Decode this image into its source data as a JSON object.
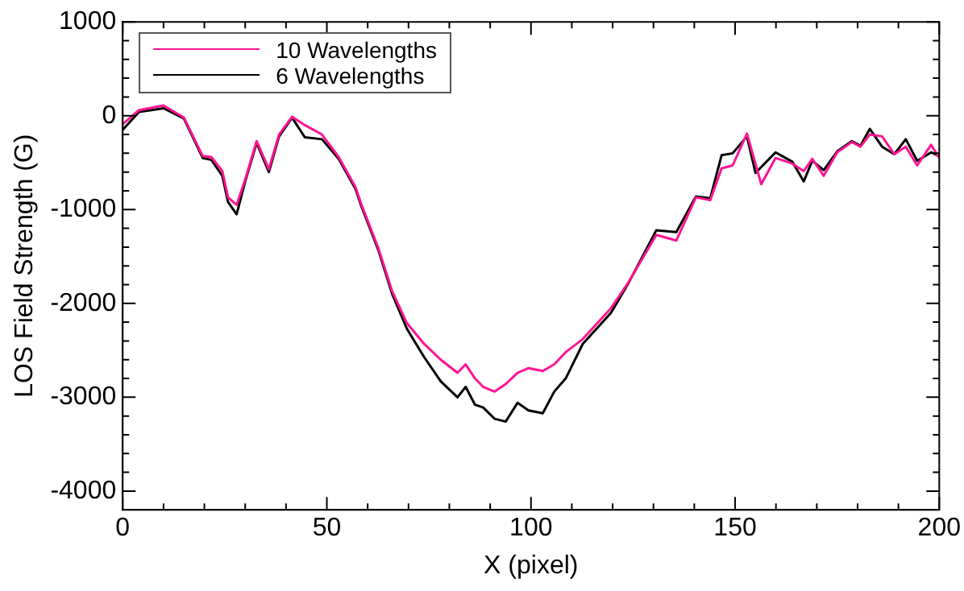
{
  "chart_data": {
    "type": "line",
    "xlabel": "X (pixel)",
    "ylabel": "LOS Field Strength (G)",
    "xlim": [
      0,
      200
    ],
    "xticks": [
      0,
      {
        "value": 10,
        "label": null
      },
      {
        "value": 20,
        "label": null
      },
      {
        "value": 30,
        "label": null
      },
      {
        "value": 40,
        "label": null
      },
      50,
      {
        "value": 60,
        "label": null
      },
      {
        "value": 70,
        "label": null
      },
      {
        "value": 80,
        "label": null
      },
      {
        "value": 90,
        "label": null
      },
      100,
      {
        "value": 110,
        "label": null
      },
      {
        "value": 120,
        "label": null
      },
      {
        "value": 130,
        "label": null
      },
      {
        "value": 140,
        "label": null
      },
      150,
      {
        "value": 160,
        "label": null
      },
      {
        "value": 170,
        "label": null
      },
      {
        "value": 180,
        "label": null
      },
      {
        "value": 190,
        "label": null
      },
      200
    ],
    "ylim": [
      -4200,
      1000
    ],
    "yticks": [
      -4000,
      {
        "value": -3800,
        "label": null
      },
      {
        "value": -3600,
        "label": null
      },
      {
        "value": -3400,
        "label": null
      },
      {
        "value": -3200,
        "label": null
      },
      -3000,
      {
        "value": -2800,
        "label": null
      },
      {
        "value": -2600,
        "label": null
      },
      {
        "value": -2400,
        "label": null
      },
      {
        "value": -2200,
        "label": null
      },
      -2000,
      {
        "value": -1800,
        "label": null
      },
      {
        "value": -1600,
        "label": null
      },
      {
        "value": -1400,
        "label": null
      },
      {
        "value": -1200,
        "label": null
      },
      -1000,
      {
        "value": -800,
        "label": null
      },
      {
        "value": -600,
        "label": null
      },
      {
        "value": -400,
        "label": null
      },
      {
        "value": -200,
        "label": null
      },
      0,
      {
        "value": 200,
        "label": null
      },
      {
        "value": 400,
        "label": null
      },
      {
        "value": 600,
        "label": null
      },
      {
        "value": 800,
        "label": null
      },
      1000
    ],
    "grid": false,
    "legend": "top left",
    "marker": "none",
    "line_style": "solid",
    "series": [
      {
        "name": "10 Wavelengths",
        "color": "#ff1493",
        "x": [
          0,
          4,
          10,
          15,
          19.6,
          21.7,
          24.4,
          25.8,
          27.9,
          30,
          32.8,
          35.8,
          38.3,
          41.5,
          44.6,
          48.8,
          52.9,
          57,
          58.5,
          62.6,
          66,
          69.6,
          73.8,
          77.9,
          82,
          84,
          86.3,
          88.3,
          91.1,
          93.8,
          96.7,
          99.4,
          102.9,
          105.7,
          108.5,
          112.7,
          119.6,
          123.8,
          130.7,
          135.6,
          140.4,
          143.9,
          146.7,
          149.4,
          152.9,
          156.4,
          159.9,
          164,
          166.8,
          168.9,
          171.7,
          175,
          178.6,
          180.7,
          183,
          186,
          189,
          191.8,
          194.6,
          198,
          200
        ],
        "values": [
          -90,
          60,
          110,
          -20,
          -430,
          -440,
          -590,
          -870,
          -950,
          -680,
          -270,
          -570,
          -200,
          -10,
          -100,
          -200,
          -440,
          -760,
          -950,
          -1410,
          -1870,
          -2210,
          -2430,
          -2600,
          -2740,
          -2650,
          -2800,
          -2890,
          -2940,
          -2860,
          -2740,
          -2690,
          -2720,
          -2650,
          -2520,
          -2380,
          -2050,
          -1780,
          -1270,
          -1330,
          -870,
          -900,
          -560,
          -530,
          -190,
          -730,
          -450,
          -510,
          -590,
          -460,
          -640,
          -390,
          -280,
          -330,
          -200,
          -220,
          -410,
          -330,
          -530,
          -310,
          -450
        ]
      },
      {
        "name": "6 Wavelengths",
        "color": "#000000",
        "x": [
          0,
          4,
          10,
          15,
          19.6,
          21.7,
          24.4,
          25.8,
          27.9,
          30,
          32.8,
          35.8,
          38.3,
          41.5,
          44.6,
          48.8,
          52.9,
          57,
          58.5,
          62.6,
          66,
          69.6,
          73.8,
          77.9,
          82,
          84,
          86.3,
          88.3,
          91.1,
          93.8,
          96.7,
          99.4,
          102.9,
          105.7,
          108.5,
          112.7,
          119.6,
          123.8,
          130.7,
          135.6,
          140.4,
          143.9,
          146.7,
          149.4,
          152.9,
          155,
          159.9,
          164,
          166.8,
          168.9,
          171.7,
          175,
          178.6,
          180.7,
          183,
          186,
          189,
          191.8,
          194.6,
          198,
          200
        ],
        "values": [
          -150,
          40,
          80,
          -30,
          -450,
          -470,
          -640,
          -920,
          -1050,
          -700,
          -290,
          -600,
          -220,
          -20,
          -230,
          -250,
          -460,
          -780,
          -970,
          -1430,
          -1900,
          -2270,
          -2570,
          -2830,
          -3000,
          -2890,
          -3080,
          -3110,
          -3230,
          -3260,
          -3060,
          -3140,
          -3170,
          -2940,
          -2800,
          -2430,
          -2100,
          -1790,
          -1220,
          -1240,
          -860,
          -880,
          -420,
          -400,
          -220,
          -610,
          -390,
          -490,
          -700,
          -480,
          -580,
          -380,
          -270,
          -320,
          -140,
          -330,
          -410,
          -250,
          -480,
          -390,
          -430
        ]
      }
    ]
  }
}
